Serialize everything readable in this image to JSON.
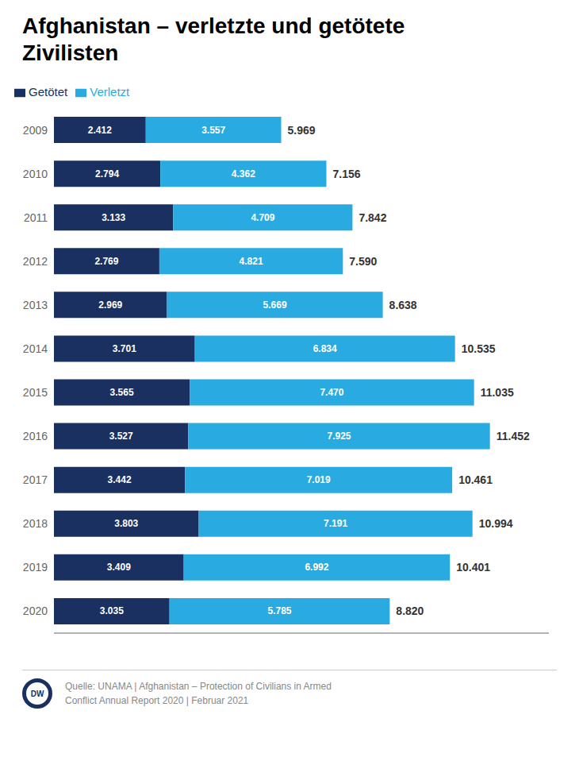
{
  "chart_data": {
    "type": "bar",
    "title": "Afghanistan – verletzte und getötete Zivilisten",
    "orientation": "horizontal",
    "stacked": true,
    "data_labels": true,
    "grid": false,
    "legend": "upper left",
    "tick_labels": "y",
    "categories": [
      "2009",
      "2010",
      "2011",
      "2012",
      "2013",
      "2014",
      "2015",
      "2016",
      "2017",
      "2018",
      "2019",
      "2020"
    ],
    "xlim": [
      0,
      13000
    ],
    "series": [
      {
        "name": "Getötet",
        "color": "#1a3060",
        "values": [
          2412,
          2794,
          3133,
          2769,
          2969,
          3701,
          3565,
          3527,
          3442,
          3803,
          3409,
          3035
        ],
        "value_labels": [
          "2.412",
          "2.794",
          "3.133",
          "2.769",
          "2.969",
          "3.701",
          "3.565",
          "3.527",
          "3.442",
          "3.803",
          "3.409",
          "3.035"
        ]
      },
      {
        "name": "Verletzt",
        "color": "#29abe2",
        "values": [
          3557,
          4362,
          4709,
          4821,
          5669,
          6834,
          7470,
          7925,
          7019,
          7191,
          6992,
          5785
        ],
        "value_labels": [
          "3.557",
          "4.362",
          "4.709",
          "4.821",
          "5.669",
          "6.834",
          "7.470",
          "7.925",
          "7.019",
          "7.191",
          "6.992",
          "5.785"
        ]
      }
    ],
    "totals": [
      5969,
      7156,
      7842,
      7590,
      8638,
      10535,
      11035,
      11452,
      10461,
      10994,
      10401,
      8820
    ],
    "total_labels": [
      "5.969",
      "7.156",
      "7.842",
      "7.590",
      "8.638",
      "10.535",
      "11.035",
      "11.452",
      "10.461",
      "10.994",
      "10.401",
      "8.820"
    ],
    "annotations": [
      "DW",
      "Quelle: UNAMA | Afghanistan – Protection of Civilians in Armed\nConflict Annual Report 2020 | Februar 2021"
    ]
  }
}
